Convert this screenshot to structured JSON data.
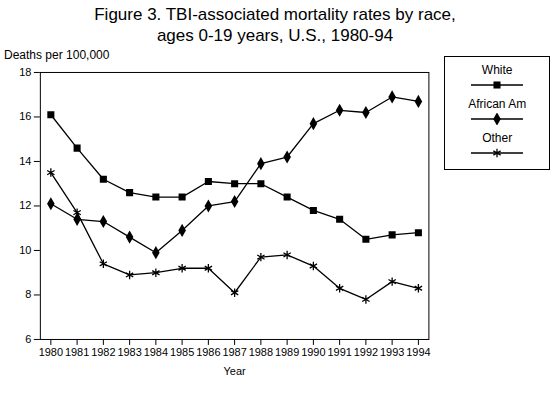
{
  "chart_data": {
    "type": "line",
    "title": "Figure 3.  TBI-associated mortality rates by race,",
    "subtitle": "ages 0-19 years, U.S., 1980-94",
    "y_label": "Deaths per 100,000",
    "x_label": "Year",
    "x": [
      1980,
      1981,
      1982,
      1983,
      1984,
      1985,
      1986,
      1987,
      1988,
      1989,
      1990,
      1991,
      1992,
      1993,
      1994
    ],
    "series": [
      {
        "name": "White",
        "color": "#000000",
        "marker": "square",
        "values": [
          16.1,
          14.6,
          13.2,
          12.6,
          12.4,
          12.4,
          13.1,
          13.0,
          13.0,
          12.4,
          11.8,
          11.4,
          10.5,
          10.7,
          10.8
        ]
      },
      {
        "name": "African Am",
        "color": "#000000",
        "marker": "diamond",
        "values": [
          12.1,
          11.4,
          11.3,
          10.6,
          9.9,
          10.9,
          12.0,
          12.2,
          13.9,
          14.2,
          15.7,
          16.3,
          16.2,
          16.9,
          16.7
        ]
      },
      {
        "name": "Other",
        "color": "#000000",
        "marker": "asterisk",
        "values": [
          13.5,
          11.7,
          9.4,
          8.9,
          9.0,
          9.2,
          9.2,
          8.1,
          9.7,
          9.8,
          9.3,
          8.3,
          7.8,
          8.6,
          8.3
        ]
      }
    ],
    "xlim": [
      1979.6,
      1994.4
    ],
    "xticks": [
      1980,
      1981,
      1982,
      1983,
      1984,
      1985,
      1986,
      1987,
      1988,
      1989,
      1990,
      1991,
      1992,
      1993,
      1994
    ],
    "ylim": [
      6,
      18
    ],
    "yticks": [
      6,
      8,
      10,
      12,
      14,
      16,
      18
    ],
    "grid": false,
    "legend": "right"
  }
}
